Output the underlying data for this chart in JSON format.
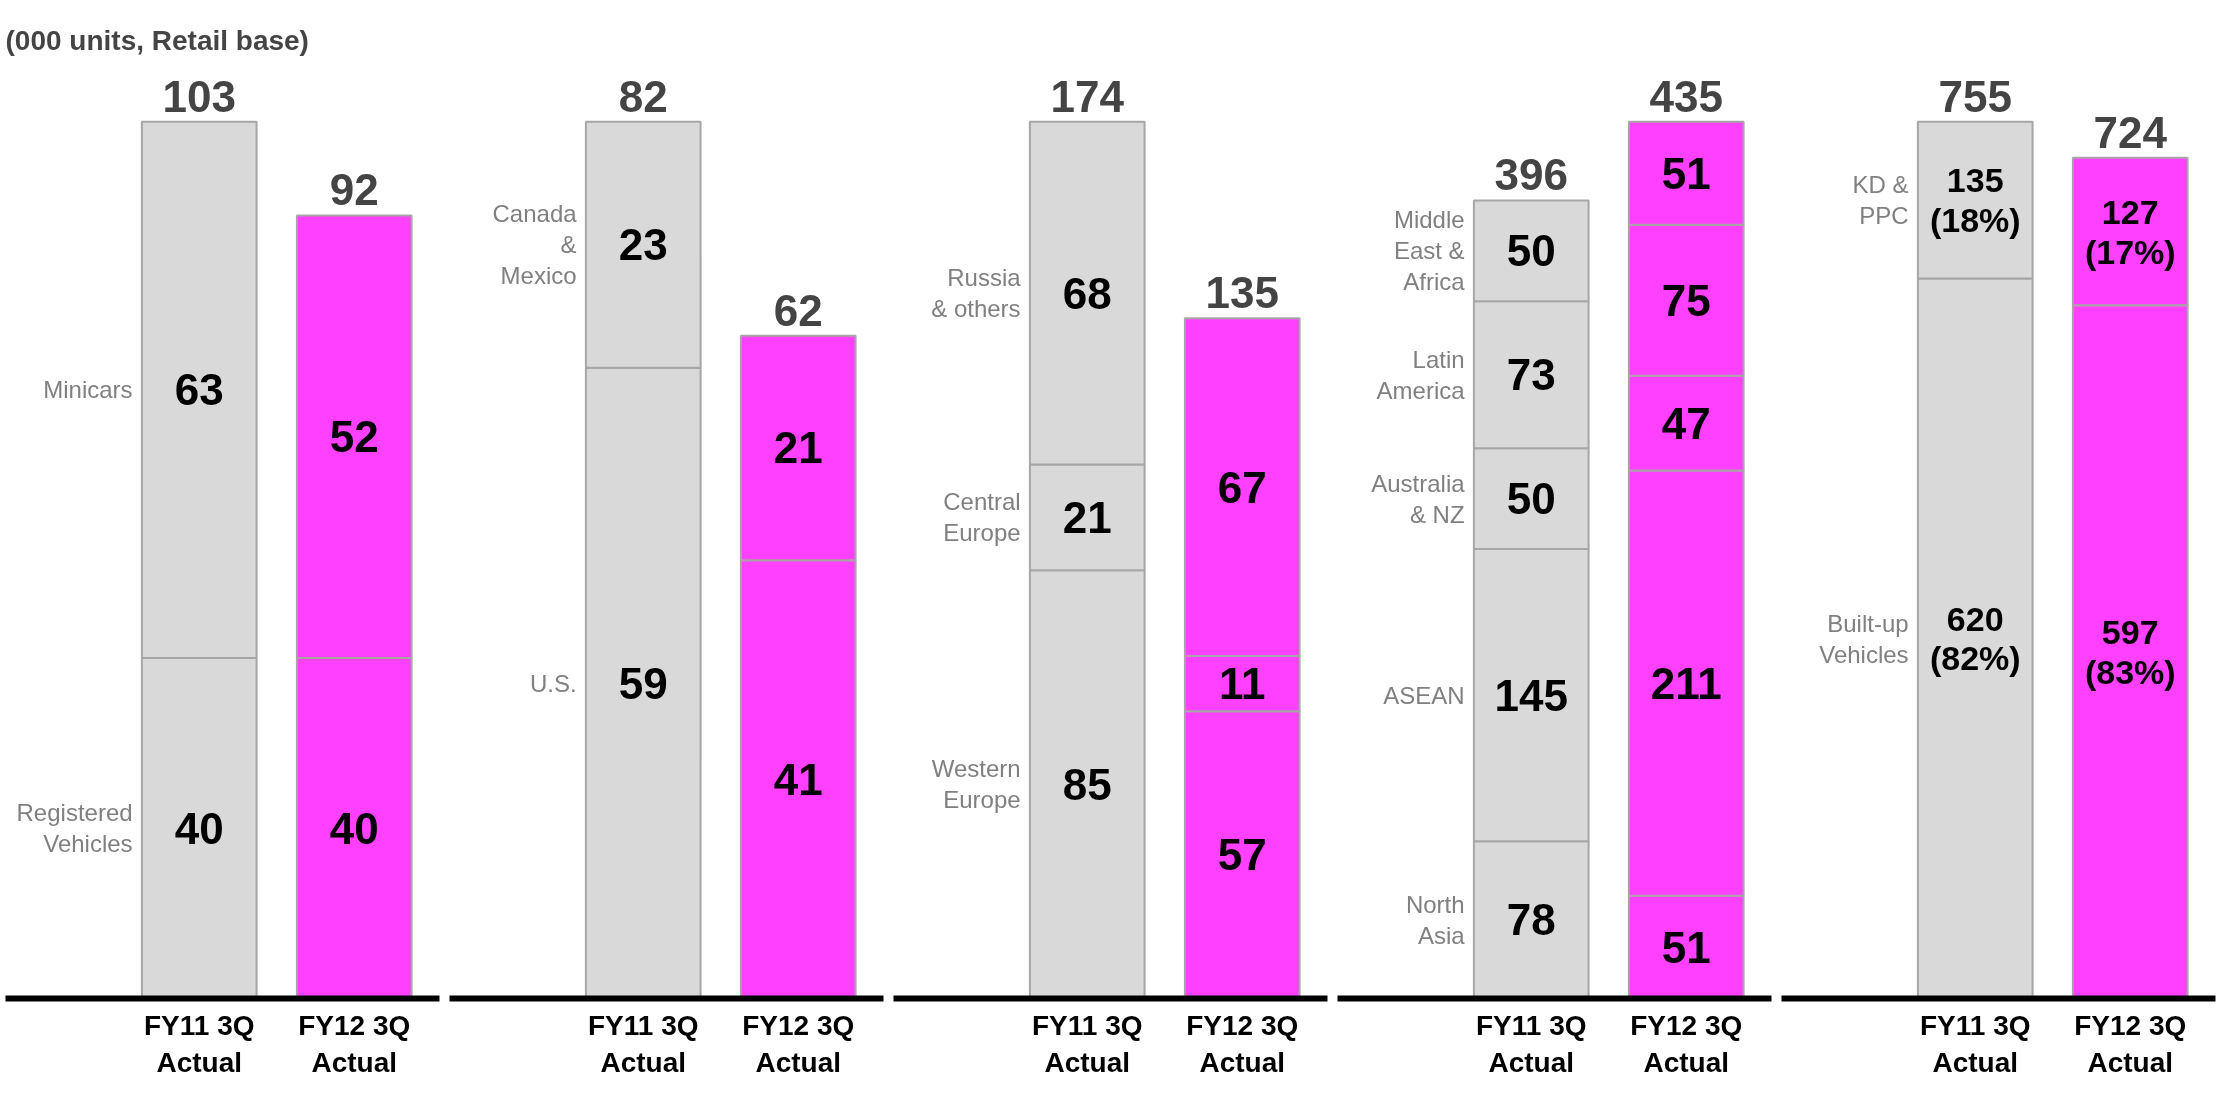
{
  "chart_data": [
    {
      "type": "bar",
      "stacked": true,
      "categories": [
        "FY11 3Q\nActual",
        "FY12 3Q\nActual"
      ],
      "tick_labels": "x",
      "grid": false,
      "data_labels": true,
      "annotations": [
        "(000 units, Retail base)"
      ],
      "series": [
        {
          "name": "Registered\nVehicles",
          "colors": [
            "#d9d9d9",
            "#ff40ff"
          ],
          "values": [
            40,
            40
          ]
        },
        {
          "name": "Minicars",
          "colors": [
            "#d9d9d9",
            "#ff40ff"
          ],
          "values": [
            63,
            52
          ]
        }
      ],
      "totals": [
        "103",
        "92"
      ]
    },
    {
      "type": "bar",
      "stacked": true,
      "categories": [
        "FY11 3Q\nActual",
        "FY12 3Q\nActual"
      ],
      "tick_labels": "x",
      "grid": false,
      "data_labels": true,
      "series": [
        {
          "name": "U.S.",
          "colors": [
            "#d9d9d9",
            "#ff40ff"
          ],
          "values": [
            59,
            41
          ]
        },
        {
          "name": "Canada\n&\nMexico",
          "colors": [
            "#d9d9d9",
            "#ff40ff"
          ],
          "values": [
            23,
            21
          ]
        }
      ],
      "totals": [
        "82",
        "62"
      ]
    },
    {
      "type": "bar",
      "stacked": true,
      "categories": [
        "FY11 3Q\nActual",
        "FY12 3Q\nActual"
      ],
      "tick_labels": "x",
      "grid": false,
      "data_labels": true,
      "series": [
        {
          "name": "Western\nEurope",
          "colors": [
            "#d9d9d9",
            "#ff40ff"
          ],
          "values": [
            85,
            57
          ]
        },
        {
          "name": "Central\nEurope",
          "colors": [
            "#d9d9d9",
            "#ff40ff"
          ],
          "values": [
            21,
            11
          ]
        },
        {
          "name": "Russia\n& others",
          "colors": [
            "#d9d9d9",
            "#ff40ff"
          ],
          "values": [
            68,
            67
          ]
        }
      ],
      "totals": [
        "174",
        "135"
      ]
    },
    {
      "type": "bar",
      "stacked": true,
      "categories": [
        "FY11 3Q\nActual",
        "FY12 3Q\nActual"
      ],
      "tick_labels": "x",
      "grid": false,
      "data_labels": true,
      "series": [
        {
          "name": "North\nAsia",
          "colors": [
            "#d9d9d9",
            "#ff40ff"
          ],
          "values": [
            78,
            51
          ]
        },
        {
          "name": "ASEAN",
          "colors": [
            "#d9d9d9",
            "#ff40ff"
          ],
          "values": [
            145,
            211
          ]
        },
        {
          "name": "Australia\n& NZ",
          "colors": [
            "#d9d9d9",
            "#ff40ff"
          ],
          "values": [
            50,
            47
          ]
        },
        {
          "name": "Latin\nAmerica",
          "colors": [
            "#d9d9d9",
            "#ff40ff"
          ],
          "values": [
            73,
            75
          ]
        },
        {
          "name": "Middle\nEast &\nAfrica",
          "colors": [
            "#d9d9d9",
            "#ff40ff"
          ],
          "values": [
            50,
            51
          ]
        }
      ],
      "totals": [
        "396",
        "435"
      ]
    },
    {
      "type": "bar",
      "stacked": true,
      "categories": [
        "FY11 3Q\nActual",
        "FY12 3Q\nActual"
      ],
      "tick_labels": "x",
      "grid": false,
      "series": [
        {
          "name": "Built-up\nVehicles",
          "colors": [
            "#d9d9d9",
            "#ff40ff"
          ],
          "values": [
            620,
            597
          ],
          "value_labels": [
            "620\n(82%)",
            "597\n(83%)"
          ]
        },
        {
          "name": "KD &\nPPC",
          "colors": [
            "#d9d9d9",
            "#ff40ff"
          ],
          "values": [
            135,
            127
          ],
          "value_labels": [
            "135\n(18%)",
            "127\n(17%)"
          ]
        }
      ],
      "totals": [
        "755",
        "724"
      ]
    }
  ]
}
